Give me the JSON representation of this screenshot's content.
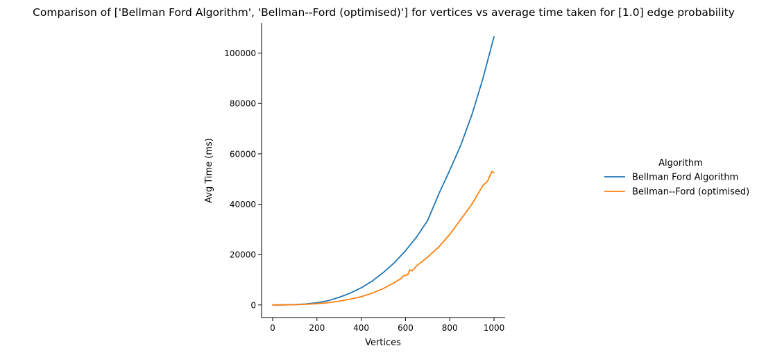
{
  "chart_data": {
    "type": "line",
    "title": "Comparison of ['Bellman Ford Algorithm', 'Bellman--Ford (optimised)'] for vertices vs average time taken for [1.0] edge probability",
    "xlabel": "Vertices",
    "ylabel": "Avg Time (ms)",
    "xlim": [
      -50,
      1050
    ],
    "ylim": [
      -5000,
      112000
    ],
    "xticks": [
      0,
      200,
      400,
      600,
      800,
      1000
    ],
    "xtick_labels": [
      "0",
      "200",
      "400",
      "600",
      "800",
      "1000"
    ],
    "yticks": [
      0,
      20000,
      40000,
      60000,
      80000,
      100000
    ],
    "ytick_labels": [
      "0",
      "20000",
      "40000",
      "60000",
      "80000",
      "100000"
    ],
    "grid": false,
    "legend": {
      "title": "Algorithm",
      "placement": "right"
    },
    "series": [
      {
        "name": "Bellman Ford Algorithm",
        "color": "#1f77b4",
        "x": [
          0,
          50,
          100,
          150,
          200,
          250,
          300,
          350,
          400,
          450,
          500,
          550,
          600,
          650,
          700,
          750,
          800,
          850,
          900,
          950,
          1000
        ],
        "y": [
          0,
          30,
          150,
          400,
          900,
          1700,
          3000,
          4700,
          6800,
          9500,
          12900,
          16800,
          21500,
          27000,
          33500,
          44000,
          53500,
          63500,
          75500,
          90000,
          106500
        ]
      },
      {
        "name": "Bellman--Ford (optimised)",
        "color": "#ff7f0e",
        "x": [
          0,
          50,
          100,
          150,
          200,
          250,
          300,
          350,
          400,
          450,
          500,
          550,
          580,
          590,
          610,
          620,
          630,
          650,
          700,
          750,
          800,
          850,
          900,
          950,
          970,
          990,
          1000
        ],
        "y": [
          0,
          20,
          100,
          250,
          500,
          900,
          1500,
          2300,
          3300,
          4700,
          6500,
          8900,
          10500,
          11500,
          12000,
          14000,
          13500,
          15500,
          19000,
          23000,
          28000,
          34000,
          40000,
          47500,
          49000,
          53000,
          52500
        ]
      }
    ]
  }
}
